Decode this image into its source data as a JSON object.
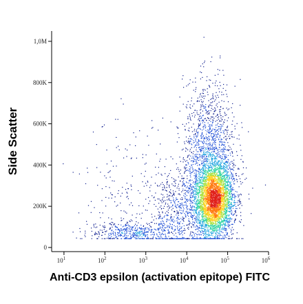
{
  "chart_data": {
    "type": "scatter",
    "subtype": "flow-cytometry density dot plot",
    "xlabel": "Anti-CD3 epsilon (activation epitope) FITC",
    "ylabel": "Side Scatter",
    "x_scale": "log",
    "y_scale": "linear",
    "xlim": [
      5,
      1000000
    ],
    "ylim": [
      -20000,
      1050000
    ],
    "x_ticks": [
      {
        "value": 10,
        "base": "10",
        "exp": "1"
      },
      {
        "value": 100,
        "base": "10",
        "exp": "2"
      },
      {
        "value": 1000,
        "base": "10",
        "exp": "3"
      },
      {
        "value": 10000,
        "base": "10",
        "exp": "4"
      },
      {
        "value": 100000,
        "base": "10",
        "exp": "5"
      },
      {
        "value": 1000000,
        "base": "10",
        "exp": "6"
      }
    ],
    "y_ticks": [
      {
        "value": 0,
        "label": "0"
      },
      {
        "value": 200000,
        "label": "200K"
      },
      {
        "value": 400000,
        "label": "400K"
      },
      {
        "value": 600000,
        "label": "600K"
      },
      {
        "value": 800000,
        "label": "800K"
      },
      {
        "value": 1000000,
        "label": "1,0M"
      }
    ],
    "populations": [
      {
        "x_center": 45000,
        "x_log_spread": 0.24,
        "y_center": 230000,
        "y_spread": 90000,
        "weight": 0.58
      },
      {
        "x_center": 35000,
        "x_log_spread": 0.32,
        "y_center": 460000,
        "y_spread": 170000,
        "weight": 0.22
      },
      {
        "x_center": 6000,
        "x_log_spread": 0.35,
        "y_center": 170000,
        "y_spread": 110000,
        "weight": 0.1
      },
      {
        "x_center": 500,
        "x_log_spread": 0.55,
        "y_center": 75000,
        "y_spread": 25000,
        "weight": 0.07
      },
      {
        "x_center": 300,
        "x_log_spread": 0.5,
        "y_center": 250000,
        "y_spread": 180000,
        "weight": 0.03
      }
    ],
    "grid": false,
    "legend": "none",
    "colormap": [
      "#0a1a8c",
      "#1f4fd6",
      "#1fa3e0",
      "#2dd4a0",
      "#a8e03a",
      "#ffd21f",
      "#ff7a12",
      "#e0201a"
    ]
  }
}
